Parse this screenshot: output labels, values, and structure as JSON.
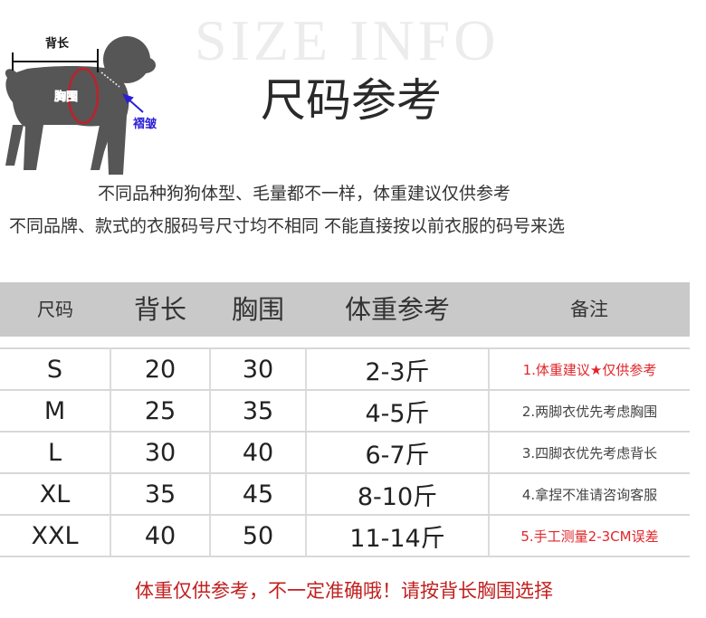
{
  "diagram": {
    "back_length_label": "背长",
    "chest_label": "胸围",
    "collar_label": "褶皱"
  },
  "watermark": "SIZE INFO",
  "title": "尺码参考",
  "notes": [
    "不同品种狗狗体型、毛量都不一样，体重建议仅供参考",
    "不同品牌、款式的衣服码号尺寸均不相同 不能直接按以前衣服的码号来选"
  ],
  "table": {
    "headers": [
      "尺码",
      "背长",
      "胸围",
      "体重参考",
      "备注"
    ],
    "rows": [
      {
        "size": "S",
        "back": "20",
        "chest": "30",
        "weight": "2-3斤",
        "remark": "1.体重建议★仅供参考"
      },
      {
        "size": "M",
        "back": "25",
        "chest": "35",
        "weight": "4-5斤",
        "remark": "2.两脚衣优先考虑胸围"
      },
      {
        "size": "L",
        "back": "30",
        "chest": "40",
        "weight": "6-7斤",
        "remark": "3.四脚衣优先考虑背长"
      },
      {
        "size": "XL",
        "back": "35",
        "chest": "45",
        "weight": "8-10斤",
        "remark": "4.拿捏不准请咨询客服"
      },
      {
        "size": "XXL",
        "back": "40",
        "chest": "50",
        "weight": "11-14斤",
        "remark": "5.手工测量2-3CM误差"
      }
    ]
  },
  "footer": "体重仅供参考，不一定准确哦！请按背长胸围选择",
  "colors": {
    "header_bg": "#c9c9c9",
    "accent_red": "#e0262b",
    "collar_blue": "#2a1fd6",
    "dog_gray": "#555555"
  }
}
